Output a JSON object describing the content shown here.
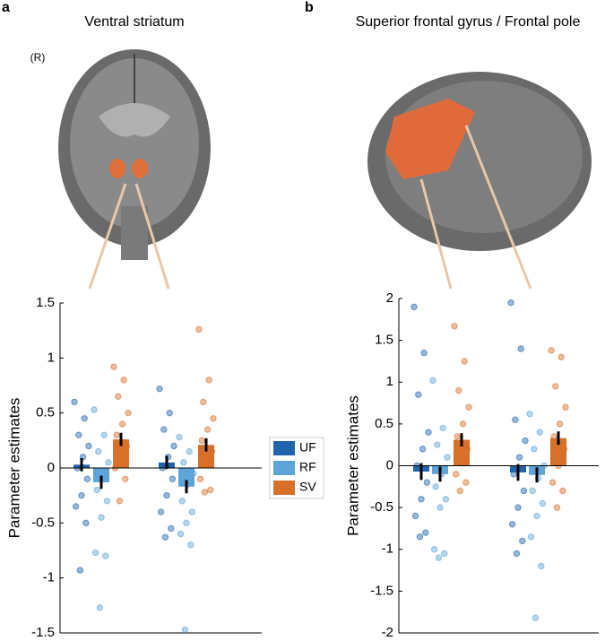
{
  "chart_data": [
    {
      "type": "bar",
      "panel": "a",
      "title": "Ventral striatum",
      "annotation": "(R)",
      "ylabel": "Parameter estimates",
      "categories": [
        null,
        null
      ],
      "ylim": [
        -1.5,
        1.5
      ],
      "yticks": [
        -1.5,
        -1,
        -0.5,
        0,
        0.5,
        1,
        1.5
      ],
      "series": [
        {
          "name": "UF",
          "color": "#1f64ad",
          "values": [
            0.03,
            0.05
          ],
          "errors": [
            0.06,
            0.06
          ],
          "points": [
            [
              0.6,
              0.45,
              0.3,
              0.2,
              0.1,
              0.0,
              -0.1,
              -0.25,
              -0.35,
              -0.5,
              -0.93
            ],
            [
              0.72,
              0.5,
              0.35,
              0.2,
              0.1,
              0.0,
              -0.1,
              -0.25,
              -0.4,
              -0.55,
              -0.63
            ]
          ]
        },
        {
          "name": "RF",
          "color": "#5da4d8",
          "values": [
            -0.13,
            -0.17
          ],
          "errors": [
            0.06,
            0.06
          ],
          "points": [
            [
              0.53,
              0.3,
              0.15,
              0.05,
              -0.1,
              -0.2,
              -0.3,
              -0.45,
              -0.77,
              -0.8,
              -1.27
            ],
            [
              0.28,
              0.15,
              0.05,
              -0.05,
              -0.15,
              -0.3,
              -0.4,
              -0.5,
              -0.6,
              -0.7,
              -1.47
            ]
          ]
        },
        {
          "name": "SV",
          "color": "#d8702a",
          "values": [
            0.26,
            0.21
          ],
          "errors": [
            0.06,
            0.06
          ],
          "points": [
            [
              0.92,
              0.8,
              0.65,
              0.5,
              0.4,
              0.3,
              0.2,
              0.1,
              0.0,
              -0.1,
              -0.3
            ],
            [
              1.26,
              0.8,
              0.6,
              0.45,
              0.35,
              0.25,
              0.15,
              0.05,
              -0.1,
              -0.2,
              -0.22
            ]
          ]
        }
      ]
    },
    {
      "type": "bar",
      "panel": "b",
      "title": "Superior frontal gyrus / Frontal pole",
      "ylabel": "Parameter estimates",
      "categories": [
        null,
        null
      ],
      "ylim": [
        -2,
        2
      ],
      "yticks": [
        -2,
        -1.5,
        -1,
        -0.5,
        0,
        0.5,
        1,
        1.5,
        2
      ],
      "series": [
        {
          "color": "#1f64ad",
          "values": [
            -0.07,
            -0.08
          ],
          "errors": [
            0.1,
            0.1
          ],
          "points": [
            [
              1.9,
              1.35,
              0.85,
              0.4,
              0.2,
              0.0,
              -0.2,
              -0.4,
              -0.6,
              -0.8,
              -0.85
            ],
            [
              1.95,
              1.4,
              0.55,
              0.3,
              0.1,
              -0.1,
              -0.3,
              -0.5,
              -0.7,
              -0.9,
              -1.05
            ]
          ]
        },
        {
          "color": "#5da4d8",
          "values": [
            -0.1,
            -0.11
          ],
          "errors": [
            0.09,
            0.09
          ],
          "points": [
            [
              1.02,
              0.45,
              0.25,
              0.1,
              -0.1,
              -0.25,
              -0.4,
              -0.5,
              -1.0,
              -1.05,
              -1.1
            ],
            [
              0.62,
              0.4,
              0.2,
              0.0,
              -0.15,
              -0.3,
              -0.45,
              -0.6,
              -0.85,
              -1.2,
              -1.82
            ]
          ]
        },
        {
          "color": "#d8702a",
          "values": [
            0.31,
            0.33
          ],
          "errors": [
            0.08,
            0.08
          ],
          "points": [
            [
              1.67,
              1.25,
              0.9,
              0.7,
              0.5,
              0.35,
              0.2,
              0.05,
              -0.1,
              -0.2,
              -0.3
            ],
            [
              1.38,
              1.3,
              0.95,
              0.7,
              0.5,
              0.35,
              0.2,
              0.0,
              -0.2,
              -0.3,
              -0.5
            ]
          ]
        }
      ]
    }
  ]
}
